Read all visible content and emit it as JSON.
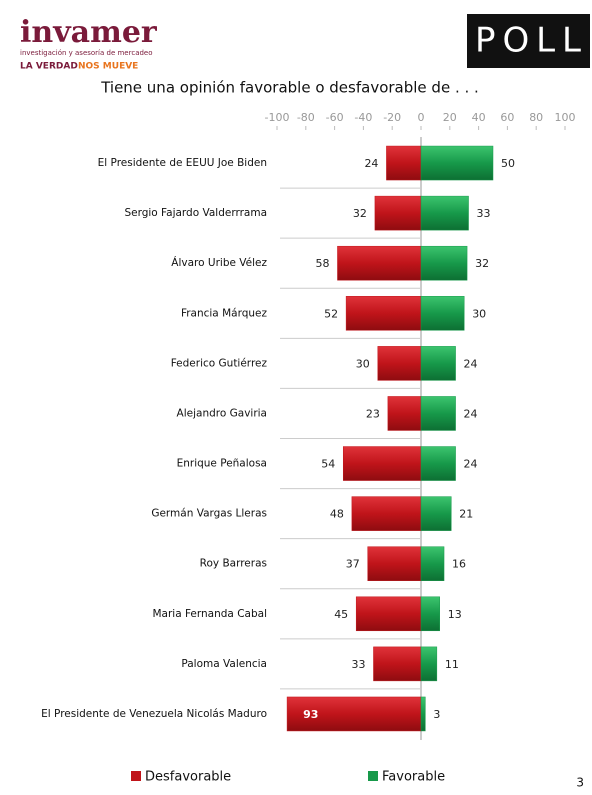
{
  "logo": {
    "name": "invamer",
    "tagline": "investigación y asesoría de mercadeo",
    "slogan_a": "LA VERDAD",
    "slogan_b": "NOS MUEVE",
    "badge": "POLL"
  },
  "page_number": "3",
  "chart_data": {
    "type": "diverging-bar",
    "title": "Tiene una opinión favorable o desfavorable de . . .",
    "categories": [
      "El Presidente de EEUU Joe Biden",
      "Sergio Fajardo Valderrrama",
      "Álvaro Uribe Vélez",
      "Francia Márquez",
      "Federico Gutiérrez",
      "Alejandro Gaviria",
      "Enrique Peñalosa",
      "Germán Vargas Lleras",
      "Roy Barreras",
      "Maria Fernanda Cabal",
      "Paloma Valencia",
      "El Presidente de Venezuela Nicolás Maduro"
    ],
    "series": [
      {
        "name": "Desfavorable",
        "color": "#c0141a",
        "values": [
          -24,
          -32,
          -58,
          -52,
          -30,
          -23,
          -54,
          -48,
          -37,
          -45,
          -33,
          -93
        ],
        "value_labels": [
          "24",
          "32",
          "58",
          "52",
          "30",
          "23",
          "54",
          "48",
          "37",
          "45",
          "33",
          "93"
        ]
      },
      {
        "name": "Favorable",
        "color": "#17994a",
        "values": [
          50,
          33,
          32,
          30,
          24,
          24,
          24,
          21,
          16,
          13,
          11,
          3
        ]
      }
    ],
    "xlim": [
      -100,
      100
    ],
    "xticks": [
      -100,
      -80,
      -60,
      -40,
      -20,
      0,
      20,
      40,
      60,
      80,
      100
    ],
    "legend": "bottom"
  }
}
